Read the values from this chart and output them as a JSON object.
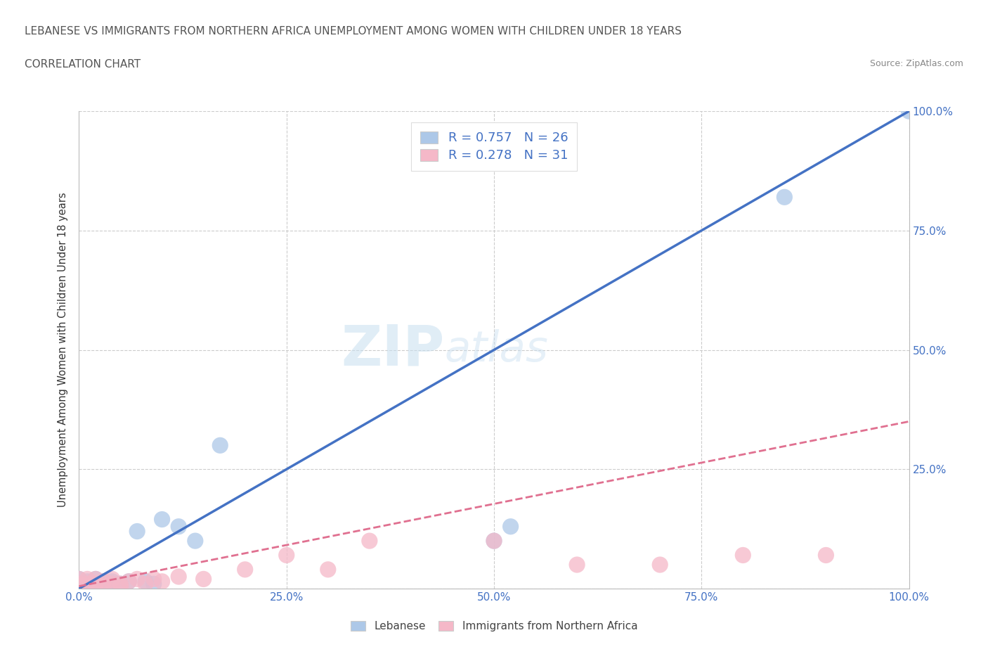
{
  "title_line1": "LEBANESE VS IMMIGRANTS FROM NORTHERN AFRICA UNEMPLOYMENT AMONG WOMEN WITH CHILDREN UNDER 18 YEARS",
  "title_line2": "CORRELATION CHART",
  "source": "Source: ZipAtlas.com",
  "ylabel": "Unemployment Among Women with Children Under 18 years",
  "watermark_zip": "ZIP",
  "watermark_atlas": "atlas",
  "legend_R1": "R = 0.757",
  "legend_N1": "N = 26",
  "legend_R2": "R = 0.278",
  "legend_N2": "N = 31",
  "color_blue": "#adc8e8",
  "color_pink": "#f5b8c8",
  "line_color_blue": "#4472c4",
  "line_color_pink": "#e07090",
  "background": "#ffffff",
  "grid_color": "#cccccc",
  "blue_scatter_x": [
    0.0,
    0.0,
    0.0,
    0.01,
    0.01,
    0.01,
    0.02,
    0.02,
    0.02,
    0.03,
    0.03,
    0.04,
    0.04,
    0.05,
    0.06,
    0.07,
    0.08,
    0.09,
    0.1,
    0.12,
    0.14,
    0.17,
    0.5,
    0.52,
    0.85,
    1.0
  ],
  "blue_scatter_y": [
    0.005,
    0.01,
    0.02,
    0.005,
    0.01,
    0.015,
    0.005,
    0.01,
    0.02,
    0.01,
    0.015,
    0.01,
    0.015,
    0.01,
    0.015,
    0.12,
    0.015,
    0.01,
    0.145,
    0.13,
    0.1,
    0.3,
    0.1,
    0.13,
    0.82,
    1.0
  ],
  "pink_scatter_x": [
    0.0,
    0.0,
    0.0,
    0.01,
    0.01,
    0.01,
    0.02,
    0.02,
    0.02,
    0.03,
    0.03,
    0.04,
    0.04,
    0.05,
    0.05,
    0.06,
    0.07,
    0.08,
    0.09,
    0.1,
    0.12,
    0.15,
    0.2,
    0.25,
    0.3,
    0.35,
    0.5,
    0.6,
    0.7,
    0.8,
    0.9
  ],
  "pink_scatter_y": [
    0.005,
    0.01,
    0.02,
    0.005,
    0.01,
    0.02,
    0.005,
    0.01,
    0.02,
    0.005,
    0.015,
    0.01,
    0.02,
    0.005,
    0.01,
    0.015,
    0.02,
    0.01,
    0.02,
    0.015,
    0.025,
    0.02,
    0.04,
    0.07,
    0.04,
    0.1,
    0.1,
    0.05,
    0.05,
    0.07,
    0.07
  ],
  "blue_line_x": [
    0.0,
    1.0
  ],
  "blue_line_y": [
    0.0,
    1.0
  ],
  "pink_line_x": [
    0.0,
    1.0
  ],
  "pink_line_y": [
    0.005,
    0.35
  ],
  "xlim": [
    0.0,
    1.0
  ],
  "ylim": [
    0.0,
    1.0
  ],
  "xtick_labels": [
    "0.0%",
    "25.0%",
    "50.0%",
    "75.0%",
    "100.0%"
  ],
  "ytick_labels_right": [
    "25.0%",
    "50.0%",
    "75.0%",
    "100.0%"
  ],
  "xtick_vals": [
    0.0,
    0.25,
    0.5,
    0.75,
    1.0
  ],
  "ytick_vals": [
    0.0,
    0.25,
    0.5,
    0.75,
    1.0
  ],
  "right_ytick_vals": [
    0.25,
    0.5,
    0.75,
    1.0
  ],
  "tick_color": "#4472c4",
  "label_color": "#555555",
  "source_color": "#888888"
}
